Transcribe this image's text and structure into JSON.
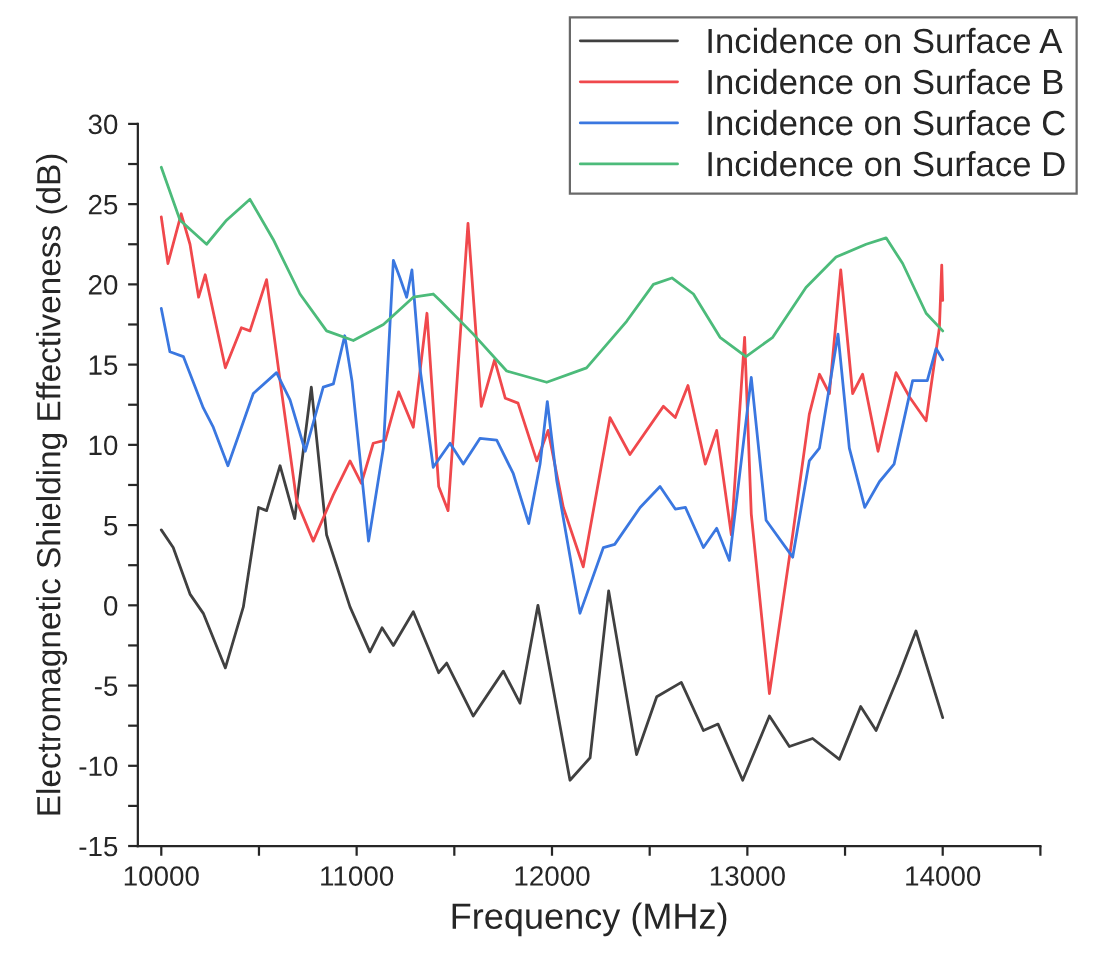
{
  "chart_data": {
    "type": "line",
    "xlabel": "Frequency (MHz)",
    "ylabel": "Electromagnetic Shielding Effectiveness (dB)",
    "xlim": [
      9880,
      14500
    ],
    "ylim": [
      -15,
      30
    ],
    "xticks": [
      10000,
      {
        "value": 10500,
        "label": null
      },
      11000,
      {
        "value": 11500,
        "label": null
      },
      12000,
      {
        "value": 12500,
        "label": null
      },
      13000,
      {
        "value": 13500,
        "label": null
      },
      14000,
      {
        "value": 14500,
        "label": null
      }
    ],
    "yticks": [
      -15,
      {
        "value": -12.5,
        "label": null
      },
      -10,
      {
        "value": -7.5,
        "label": null
      },
      -5,
      {
        "value": -2.5,
        "label": null
      },
      0,
      {
        "value": 2.5,
        "label": null
      },
      5,
      {
        "value": 7.5,
        "label": null
      },
      10,
      {
        "value": 12.5,
        "label": null
      },
      15,
      {
        "value": 17.5,
        "label": null
      },
      20,
      {
        "value": 22.5,
        "label": null
      },
      25,
      {
        "value": 27.5,
        "label": null
      },
      30
    ],
    "grid": false,
    "legend": "top right",
    "marker": "none",
    "line_style": "solid",
    "series": [
      {
        "name": "Incidence on Surface A",
        "color": "#404040",
        "x": [
          10000,
          10061,
          10147,
          10215,
          10328,
          10420,
          10498,
          10539,
          10608,
          10683,
          10768,
          10846,
          10966,
          11068,
          11130,
          11188,
          11290,
          11420,
          11461,
          11597,
          11751,
          11836,
          11928,
          11973,
          12092,
          12195,
          12290,
          12433,
          12536,
          12662,
          12775,
          12850,
          12976,
          13113,
          13215,
          13334,
          13471,
          13580,
          13659,
          13778,
          13863,
          14000
        ],
        "values": [
          4.7,
          3.6,
          0.7,
          -0.5,
          -3.9,
          -0.1,
          6.1,
          5.9,
          8.7,
          5.4,
          13.6,
          4.4,
          -0.1,
          -2.9,
          -1.4,
          -2.5,
          -0.4,
          -4.2,
          -3.6,
          -6.9,
          -4.1,
          -6.1,
          0.0,
          -3.0,
          -10.9,
          -9.5,
          0.9,
          -9.3,
          -5.7,
          -4.8,
          -7.8,
          -7.4,
          -10.9,
          -6.9,
          -8.8,
          -8.3,
          -9.6,
          -6.3,
          -7.8,
          -4.3,
          -1.6,
          -7.0
        ]
      },
      {
        "name": "Incidence on Surface B",
        "color": "#f0484c",
        "x": [
          10000,
          10034,
          10102,
          10147,
          10191,
          10225,
          10328,
          10410,
          10454,
          10539,
          10608,
          10693,
          10778,
          10881,
          10966,
          11024,
          11085,
          11147,
          11215,
          11290,
          11360,
          11420,
          11468,
          11570,
          11638,
          11706,
          11761,
          11826,
          11922,
          11980,
          12058,
          12160,
          12297,
          12399,
          12570,
          12631,
          12696,
          12785,
          12843,
          12918,
          12986,
          13020,
          13113,
          13232,
          13317,
          13369,
          13420,
          13478,
          13539,
          13590,
          13669,
          13761,
          13829,
          13915,
          13983,
          13995,
          14000
        ],
        "values": [
          24.2,
          21.3,
          24.4,
          22.5,
          19.2,
          20.6,
          14.8,
          17.3,
          17.1,
          20.3,
          14.0,
          6.5,
          4.0,
          6.9,
          9.0,
          7.6,
          10.1,
          10.3,
          13.3,
          11.1,
          18.2,
          7.4,
          5.9,
          23.8,
          12.4,
          15.3,
          12.9,
          12.6,
          9.0,
          10.9,
          6.1,
          2.4,
          11.7,
          9.4,
          12.4,
          11.7,
          13.7,
          8.8,
          10.9,
          4.4,
          16.7,
          5.7,
          -5.5,
          4.4,
          11.9,
          14.4,
          13.2,
          20.9,
          13.2,
          14.4,
          9.6,
          14.5,
          13.0,
          11.5,
          17.3,
          21.2,
          19.0
        ]
      },
      {
        "name": "Incidence on Surface C",
        "color": "#3a77e0",
        "x": [
          10000,
          10044,
          10113,
          10215,
          10266,
          10341,
          10471,
          10590,
          10659,
          10737,
          10829,
          10881,
          10939,
          10976,
          11061,
          11137,
          11188,
          11222,
          11256,
          11283,
          11324,
          11392,
          11478,
          11546,
          11631,
          11717,
          11802,
          11881,
          11939,
          11976,
          12024,
          12143,
          12263,
          12321,
          12451,
          12553,
          12631,
          12683,
          12775,
          12843,
          12908,
          13020,
          13096,
          13232,
          13317,
          13369,
          13464,
          13522,
          13601,
          13676,
          13751,
          13846,
          13921,
          13966,
          14000
        ],
        "values": [
          18.5,
          15.8,
          15.5,
          12.3,
          11.1,
          8.7,
          13.2,
          14.5,
          12.8,
          9.6,
          13.6,
          13.8,
          16.8,
          14.0,
          4.0,
          9.8,
          21.5,
          20.4,
          19.2,
          20.9,
          14.8,
          8.6,
          10.1,
          8.8,
          10.4,
          10.3,
          8.2,
          5.1,
          8.8,
          12.7,
          7.8,
          -0.5,
          3.6,
          3.8,
          6.1,
          7.4,
          6.0,
          6.1,
          3.6,
          4.8,
          2.8,
          14.2,
          5.3,
          3.0,
          9.0,
          9.8,
          16.9,
          9.8,
          6.1,
          7.7,
          8.8,
          14.0,
          14.0,
          16.0,
          15.3
        ]
      },
      {
        "name": "Incidence on Surface D",
        "color": "#4cbb7a",
        "x": [
          10000,
          10096,
          10232,
          10334,
          10454,
          10573,
          10710,
          10846,
          10983,
          11137,
          11290,
          11392,
          11427,
          11597,
          11768,
          11973,
          12177,
          12382,
          12519,
          12614,
          12724,
          12860,
          12993,
          13130,
          13300,
          13454,
          13608,
          13710,
          13795,
          13915,
          14000
        ],
        "values": [
          27.3,
          24.0,
          22.5,
          24.0,
          25.3,
          22.8,
          19.4,
          17.1,
          16.5,
          17.5,
          19.2,
          19.4,
          19.0,
          16.9,
          14.6,
          13.9,
          14.8,
          17.7,
          20.0,
          20.4,
          19.4,
          16.7,
          15.5,
          16.7,
          19.8,
          21.7,
          22.5,
          22.9,
          21.3,
          18.2,
          17.1
        ]
      }
    ]
  }
}
